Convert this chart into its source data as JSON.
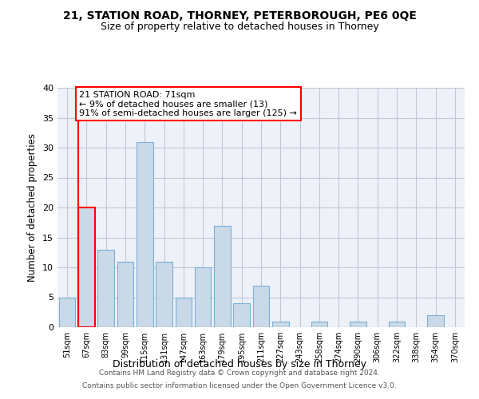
{
  "title1": "21, STATION ROAD, THORNEY, PETERBOROUGH, PE6 0QE",
  "title2": "Size of property relative to detached houses in Thorney",
  "xlabel": "Distribution of detached houses by size in Thorney",
  "ylabel": "Number of detached properties",
  "categories": [
    "51sqm",
    "67sqm",
    "83sqm",
    "99sqm",
    "115sqm",
    "131sqm",
    "147sqm",
    "163sqm",
    "179sqm",
    "195sqm",
    "211sqm",
    "227sqm",
    "243sqm",
    "258sqm",
    "274sqm",
    "290sqm",
    "306sqm",
    "322sqm",
    "338sqm",
    "354sqm",
    "370sqm"
  ],
  "values": [
    5,
    20,
    13,
    11,
    31,
    11,
    5,
    10,
    17,
    4,
    7,
    1,
    0,
    1,
    0,
    1,
    0,
    1,
    0,
    2,
    0
  ],
  "bar_color": "#c9d9e8",
  "bar_edge_color": "#7bafd4",
  "highlight_bar_index": 1,
  "highlight_edge_color": "red",
  "annotation_line1": "21 STATION ROAD: 71sqm",
  "annotation_line2": "← 9% of detached houses are smaller (13)",
  "annotation_line3": "91% of semi-detached houses are larger (125) →",
  "annotation_box_color": "white",
  "annotation_box_edge_color": "red",
  "ylim": [
    0,
    40
  ],
  "yticks": [
    0,
    5,
    10,
    15,
    20,
    25,
    30,
    35,
    40
  ],
  "grid_color": "#c0c8d8",
  "background_color": "#eef2f8",
  "footer1": "Contains HM Land Registry data © Crown copyright and database right 2024.",
  "footer2": "Contains public sector information licensed under the Open Government Licence v3.0."
}
